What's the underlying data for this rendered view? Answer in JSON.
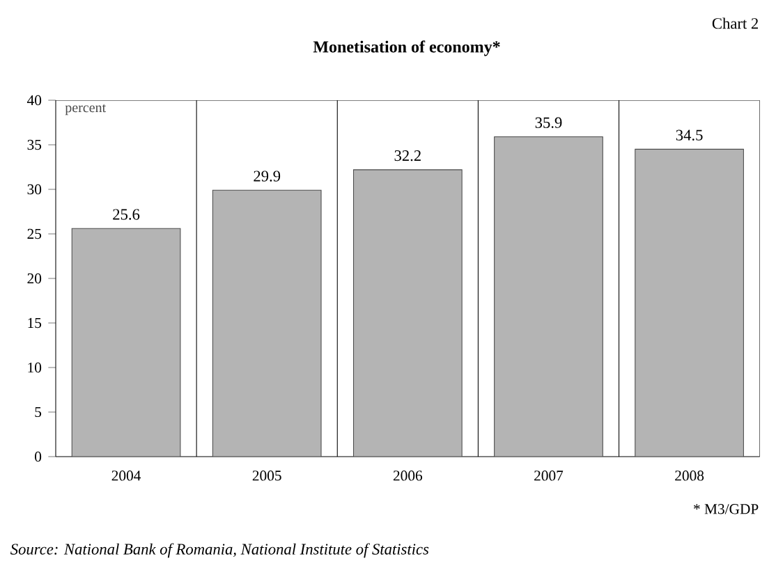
{
  "chart_data": {
    "type": "bar",
    "title": "Monetisation of economy*",
    "ylabel": "percent",
    "categories": [
      "2004",
      "2005",
      "2006",
      "2007",
      "2008"
    ],
    "values": [
      25.6,
      29.9,
      32.2,
      35.9,
      34.5
    ],
    "color": "#b4b4b4",
    "ylim": [
      0,
      40
    ],
    "yticks": [
      0,
      5,
      10,
      15,
      20,
      25,
      30,
      35,
      40
    ],
    "data_labels": true,
    "grid": "x",
    "annotations": [
      "Chart 2",
      "* M3/GDP",
      "Source: National Bank of Romania, National Institute of Statistics"
    ]
  }
}
